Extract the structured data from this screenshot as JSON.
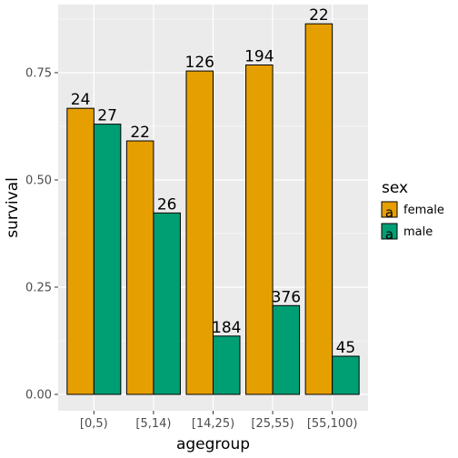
{
  "chart_data": {
    "type": "bar",
    "xlabel": "agegroup",
    "ylabel": "survival",
    "categories": [
      "[0,5)",
      "[5,14)",
      "[14,25)",
      "[25,55)",
      "[55,100)"
    ],
    "ylim": [
      0,
      0.875
    ],
    "yticks": [
      0.0,
      0.25,
      0.5,
      0.75
    ],
    "ytick_labels": [
      "0.00",
      "0.25",
      "0.50",
      "0.75"
    ],
    "grid": true,
    "legend": {
      "title": "sex",
      "position": "right",
      "key_text": "a"
    },
    "series": [
      {
        "name": "female",
        "color": "#E69F00",
        "values": [
          0.667,
          0.591,
          0.754,
          0.768,
          0.864
        ],
        "labels": [
          "24",
          "22",
          "126",
          "194",
          "22"
        ]
      },
      {
        "name": "male",
        "color": "#009E73",
        "values": [
          0.63,
          0.423,
          0.136,
          0.207,
          0.089
        ],
        "labels": [
          "27",
          "26",
          "184",
          "376",
          "45"
        ]
      }
    ]
  }
}
